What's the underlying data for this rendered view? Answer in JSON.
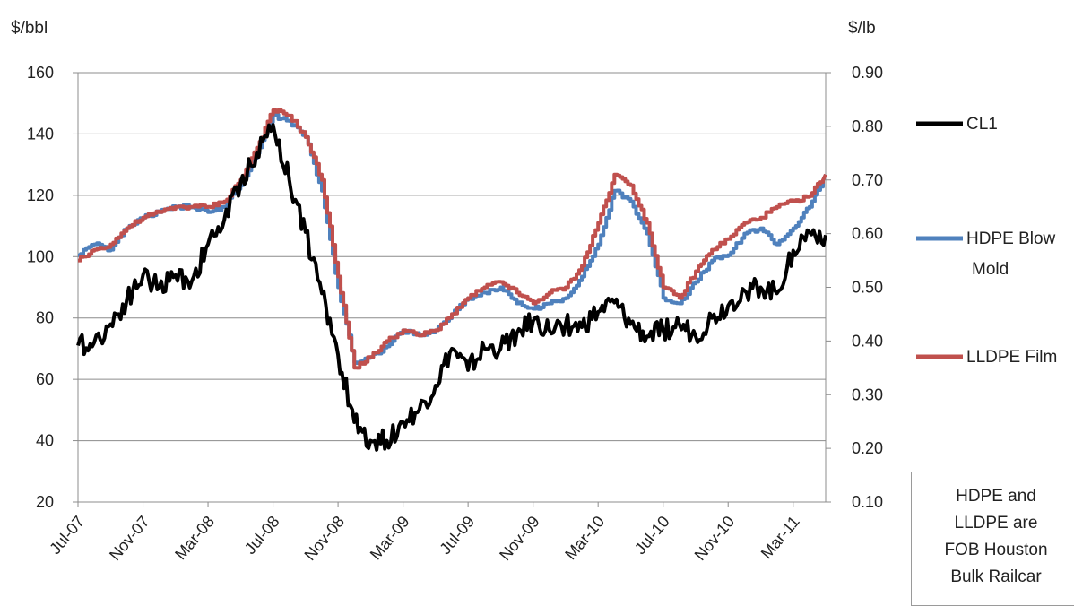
{
  "chart_data": {
    "type": "line",
    "left_axis_label": "$/bbl",
    "right_axis_label": "$/lb",
    "ylim_left": [
      20,
      160
    ],
    "ylim_right": [
      0.1,
      0.9
    ],
    "y_ticks_left": [
      "160",
      "140",
      "120",
      "100",
      "80",
      "60",
      "40",
      "20"
    ],
    "y_ticks_right": [
      "0.90",
      "0.80",
      "0.70",
      "0.60",
      "0.50",
      "0.40",
      "0.30",
      "0.20",
      "0.10"
    ],
    "x_ticks": [
      "Jul-07",
      "Nov-07",
      "Mar-08",
      "Jul-08",
      "Nov-08",
      "Mar-09",
      "Jul-09",
      "Nov-09",
      "Mar-10",
      "Jul-10",
      "Nov-10",
      "Mar-11"
    ],
    "x_range_months": [
      "Jul-07",
      "May-11"
    ],
    "grid": "horizontal",
    "legend_position": "right",
    "series": [
      {
        "name": "CL1",
        "axis": "left",
        "color": "#000000",
        "points": [
          [
            "Jul-07",
            71
          ],
          [
            "Aug-07",
            72
          ],
          [
            "Sep-07",
            78
          ],
          [
            "Oct-07",
            86
          ],
          [
            "Nov-07",
            94
          ],
          [
            "Dec-07",
            90
          ],
          [
            "Jan-08",
            94
          ],
          [
            "Feb-08",
            92
          ],
          [
            "Mar-08",
            104
          ],
          [
            "Apr-08",
            112
          ],
          [
            "May-08",
            124
          ],
          [
            "Jun-08",
            134
          ],
          [
            "Jul-08",
            143
          ],
          [
            "Aug-08",
            125
          ],
          [
            "Sep-08",
            108
          ],
          [
            "Oct-08",
            88
          ],
          [
            "Nov-08",
            68
          ],
          [
            "Dec-08",
            46
          ],
          [
            "Jan-09",
            40
          ],
          [
            "Feb-09",
            40
          ],
          [
            "Mar-09",
            46
          ],
          [
            "Apr-09",
            50
          ],
          [
            "May-09",
            58
          ],
          [
            "Jun-09",
            70
          ],
          [
            "Jul-09",
            63
          ],
          [
            "Aug-09",
            70
          ],
          [
            "Sep-09",
            70
          ],
          [
            "Oct-09",
            75
          ],
          [
            "Nov-09",
            79
          ],
          [
            "Dec-09",
            76
          ],
          [
            "Jan-10",
            78
          ],
          [
            "Feb-10",
            77
          ],
          [
            "Mar-10",
            82
          ],
          [
            "Apr-10",
            85
          ],
          [
            "May-10",
            78
          ],
          [
            "Jun-10",
            74
          ],
          [
            "Jul-10",
            76
          ],
          [
            "Aug-10",
            78
          ],
          [
            "Sep-10",
            74
          ],
          [
            "Oct-10",
            80
          ],
          [
            "Nov-10",
            84
          ],
          [
            "Dec-10",
            89
          ],
          [
            "Jan-11",
            90
          ],
          [
            "Feb-11",
            88
          ],
          [
            "Mar-11",
            102
          ],
          [
            "Apr-11",
            108
          ],
          [
            "May-11",
            107
          ]
        ]
      },
      {
        "name": "HDPE Blow Mold",
        "axis": "right",
        "color": "#4f81bd",
        "points": [
          [
            "Jul-07",
            0.56
          ],
          [
            "Aug-07",
            0.58
          ],
          [
            "Sep-07",
            0.57
          ],
          [
            "Oct-07",
            0.61
          ],
          [
            "Nov-07",
            0.63
          ],
          [
            "Dec-07",
            0.64
          ],
          [
            "Jan-08",
            0.65
          ],
          [
            "Feb-08",
            0.65
          ],
          [
            "Mar-08",
            0.64
          ],
          [
            "Apr-08",
            0.65
          ],
          [
            "May-08",
            0.69
          ],
          [
            "Jun-08",
            0.75
          ],
          [
            "Jul-08",
            0.82
          ],
          [
            "Aug-08",
            0.81
          ],
          [
            "Sep-08",
            0.78
          ],
          [
            "Oct-08",
            0.68
          ],
          [
            "Nov-08",
            0.5
          ],
          [
            "Dec-08",
            0.36
          ],
          [
            "Jan-09",
            0.37
          ],
          [
            "Feb-09",
            0.39
          ],
          [
            "Mar-09",
            0.42
          ],
          [
            "Apr-09",
            0.41
          ],
          [
            "May-09",
            0.42
          ],
          [
            "Jun-09",
            0.45
          ],
          [
            "Jul-09",
            0.48
          ],
          [
            "Aug-09",
            0.49
          ],
          [
            "Sep-09",
            0.5
          ],
          [
            "Oct-09",
            0.47
          ],
          [
            "Nov-09",
            0.46
          ],
          [
            "Dec-09",
            0.47
          ],
          [
            "Jan-10",
            0.48
          ],
          [
            "Feb-10",
            0.52
          ],
          [
            "Mar-10",
            0.58
          ],
          [
            "Apr-10",
            0.68
          ],
          [
            "May-10",
            0.66
          ],
          [
            "Jun-10",
            0.6
          ],
          [
            "Jul-10",
            0.48
          ],
          [
            "Aug-10",
            0.47
          ],
          [
            "Sep-10",
            0.51
          ],
          [
            "Oct-10",
            0.55
          ],
          [
            "Nov-10",
            0.56
          ],
          [
            "Dec-10",
            0.6
          ],
          [
            "Jan-11",
            0.61
          ],
          [
            "Feb-11",
            0.58
          ],
          [
            "Mar-11",
            0.61
          ],
          [
            "Apr-11",
            0.65
          ],
          [
            "May-11",
            0.71
          ]
        ]
      },
      {
        "name": "LLDPE Film",
        "axis": "right",
        "color": "#c0504d",
        "points": [
          [
            "Jul-07",
            0.55
          ],
          [
            "Aug-07",
            0.57
          ],
          [
            "Sep-07",
            0.58
          ],
          [
            "Oct-07",
            0.61
          ],
          [
            "Nov-07",
            0.63
          ],
          [
            "Dec-07",
            0.64
          ],
          [
            "Jan-08",
            0.65
          ],
          [
            "Feb-08",
            0.65
          ],
          [
            "Mar-08",
            0.65
          ],
          [
            "Apr-08",
            0.66
          ],
          [
            "May-08",
            0.7
          ],
          [
            "Jun-08",
            0.76
          ],
          [
            "Jul-08",
            0.83
          ],
          [
            "Aug-08",
            0.82
          ],
          [
            "Sep-08",
            0.78
          ],
          [
            "Oct-08",
            0.7
          ],
          [
            "Nov-08",
            0.52
          ],
          [
            "Dec-08",
            0.35
          ],
          [
            "Jan-09",
            0.37
          ],
          [
            "Feb-09",
            0.4
          ],
          [
            "Mar-09",
            0.42
          ],
          [
            "Apr-09",
            0.41
          ],
          [
            "May-09",
            0.42
          ],
          [
            "Jun-09",
            0.45
          ],
          [
            "Jul-09",
            0.48
          ],
          [
            "Aug-09",
            0.5
          ],
          [
            "Sep-09",
            0.51
          ],
          [
            "Oct-09",
            0.49
          ],
          [
            "Nov-09",
            0.47
          ],
          [
            "Dec-09",
            0.49
          ],
          [
            "Jan-10",
            0.5
          ],
          [
            "Feb-10",
            0.54
          ],
          [
            "Mar-10",
            0.62
          ],
          [
            "Apr-10",
            0.71
          ],
          [
            "May-10",
            0.69
          ],
          [
            "Jun-10",
            0.62
          ],
          [
            "Jul-10",
            0.5
          ],
          [
            "Aug-10",
            0.48
          ],
          [
            "Sep-10",
            0.53
          ],
          [
            "Oct-10",
            0.57
          ],
          [
            "Nov-10",
            0.59
          ],
          [
            "Dec-10",
            0.62
          ],
          [
            "Jan-11",
            0.63
          ],
          [
            "Feb-11",
            0.65
          ],
          [
            "Mar-11",
            0.66
          ],
          [
            "Apr-11",
            0.67
          ],
          [
            "May-11",
            0.71
          ]
        ]
      }
    ]
  },
  "legend": {
    "cl1": "CL1",
    "hdpe_line1": "HDPE Blow",
    "hdpe_line2": "Mold",
    "lldpe": "LLDPE Film"
  },
  "note": {
    "line1": "HDPE and",
    "line2": "LLDPE are",
    "line3": "FOB Houston",
    "line4": "Bulk Railcar"
  }
}
